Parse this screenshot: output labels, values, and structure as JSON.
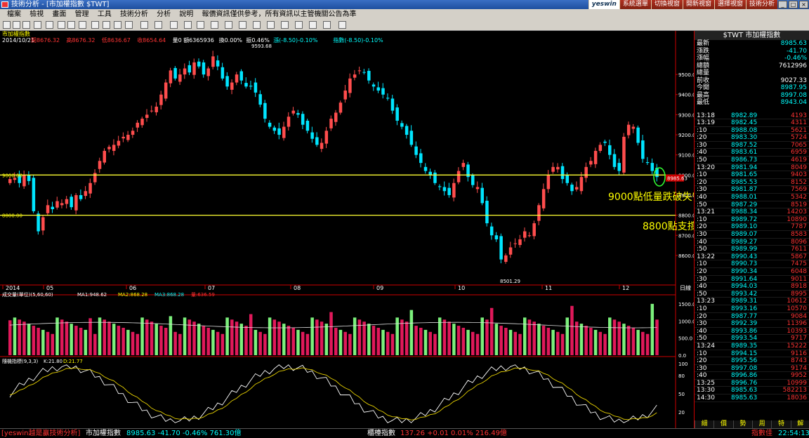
{
  "title": "技術分析 - [市加權指數 $TWT]",
  "menu": [
    "檔案",
    "檢視",
    "畫面",
    "管理",
    "工具",
    "技術分析",
    "分析",
    "說明",
    "報價資訊僅供參考，所有資訊以主管機關公告為準"
  ],
  "top_buttons": [
    "yeswin",
    "系統選單",
    "切換視窗",
    "開新視窗",
    "選擇視窗",
    "技術分析"
  ],
  "chart_header": {
    "name": "市加權指數",
    "date": "2014/10/21",
    "fields": [
      "開8676.32",
      "高8676.32",
      "低8636.67",
      "收8654.64",
      "量0",
      "額6365936",
      "換0.00%",
      "振0.46%",
      "漲(-8.50)-0.10%",
      "指數(-8.50)-0.10%"
    ]
  },
  "price_axis": [
    "9500.00",
    "9400.00",
    "9300.00",
    "9200.00",
    "9100.00",
    "9000.00",
    "8900.00",
    "8800.00",
    "8700.00",
    "8600.00"
  ],
  "x_labels": [
    "2014",
    "05",
    "06",
    "07",
    "08",
    "09",
    "10",
    "11",
    "12"
  ],
  "x_label_day": "日線",
  "levels": {
    "a": "9000.00",
    "b": "8800.00"
  },
  "annotations": {
    "hi": "9593.68",
    "lo": "8501.29",
    "a9000": "9000點低量跌破失守",
    "a8800": "8800點支撐"
  },
  "price_tag": "8985.63",
  "vol": {
    "header": "成交量(單位)(5,60,60)",
    "ma1": "MA1:948.62",
    "ma2": "MA2:868.28",
    "ma3": "MA3:868.28",
    "q": "量:636.59",
    "axis": [
      "1500.0",
      "1000.0",
      "500.0",
      "0.0"
    ]
  },
  "kd": {
    "header": "隨機指標(9,3,3)",
    "k": "K:21.80",
    "d": "D:21.77",
    "axis": [
      "100",
      "80",
      "50",
      "20"
    ]
  },
  "colors": {
    "up": "#ff4d4d",
    "down": "#00e5ff",
    "vup": "#e0195a",
    "vdn": "#7cf07c",
    "level": "#ffff33",
    "k": "#ffffff",
    "d": "#e6d000",
    "anno": "#ffff00"
  },
  "panel": {
    "title": "$TWT 市加權指數",
    "quote": [
      [
        "最新",
        "8985.63"
      ],
      [
        "漲跌",
        "-41.70"
      ],
      [
        "漲幅",
        "-0.46%"
      ],
      [
        "總額",
        "7612996"
      ],
      [
        "總量",
        ""
      ],
      [
        "前收",
        "9027.33"
      ],
      [
        "今開",
        "8987.95"
      ],
      [
        "最高",
        "8997.08"
      ],
      [
        "最低",
        "8943.04"
      ]
    ],
    "ticks": [
      [
        "13:18",
        "8982.89",
        "4193"
      ],
      [
        "13:19",
        "8982.45",
        "4311"
      ],
      [
        ":10",
        "8988.08",
        "5621"
      ],
      [
        ":20",
        "8983.30",
        "5724"
      ],
      [
        ":30",
        "8987.52",
        "7065"
      ],
      [
        ":40",
        "8983.61",
        "6959"
      ],
      [
        ":50",
        "8986.73",
        "4619"
      ],
      [
        "13:20",
        "8981.94",
        "8049"
      ],
      [
        ":10",
        "8981.65",
        "9403"
      ],
      [
        ":20",
        "8985.53",
        "8152"
      ],
      [
        ":30",
        "8981.87",
        "7569"
      ],
      [
        ":40",
        "8988.01",
        "5342"
      ],
      [
        ":50",
        "8987.29",
        "8519"
      ],
      [
        "13:21",
        "8988.34",
        "14203"
      ],
      [
        ":10",
        "8989.72",
        "10890"
      ],
      [
        ":20",
        "8989.10",
        "7787"
      ],
      [
        ":30",
        "8989.07",
        "8583"
      ],
      [
        ":40",
        "8989.27",
        "8096"
      ],
      [
        ":50",
        "8989.99",
        "7611"
      ],
      [
        "13:22",
        "8990.43",
        "5867"
      ],
      [
        ":10",
        "8990.73",
        "7475"
      ],
      [
        ":20",
        "8990.34",
        "6048"
      ],
      [
        ":30",
        "8991.64",
        "9011"
      ],
      [
        ":40",
        "8994.03",
        "8918"
      ],
      [
        ":50",
        "8993.42",
        "8995"
      ],
      [
        "13:23",
        "8989.31",
        "10612"
      ],
      [
        ":10",
        "8993.16",
        "10570"
      ],
      [
        ":20",
        "8987.77",
        "9084"
      ],
      [
        ":30",
        "8992.39",
        "11396"
      ],
      [
        ":40",
        "8993.86",
        "10393"
      ],
      [
        ":50",
        "8993.54",
        "9717"
      ],
      [
        "13:24",
        "8989.35",
        "15222"
      ],
      [
        ":10",
        "8994.15",
        "9116"
      ],
      [
        ":20",
        "8995.56",
        "8743"
      ],
      [
        ":30",
        "8997.08",
        "9174"
      ],
      [
        ":40",
        "8996.86",
        "9952"
      ],
      [
        "13:25",
        "8996.76",
        "10999"
      ],
      [
        "13:30",
        "8985.63",
        "582213"
      ],
      [
        "14:30",
        "8985.63",
        "18036"
      ]
    ],
    "tabs": [
      "細",
      "價",
      "勢",
      "周",
      "特",
      "解"
    ]
  },
  "status": {
    "brand": "[yeswin越是贏技術分析]",
    "idx1": "市加權指數",
    "idx1_val": "8985.63 -41.70 -0.46% 761.30億",
    "idx2": "櫃檯指數",
    "idx2_val": "137.26 +0.01 0.01% 216.49億",
    "right": "指數佳",
    "time": "22:54:13"
  },
  "chart_data": {
    "type": "candlestick",
    "ohlc_daily_sample": "values estimated from screenshot",
    "series": [
      {
        "name": "市加權指數"
      }
    ],
    "closes": [
      8980,
      8985,
      8960,
      9000,
      8970,
      8820,
      8720,
      8790,
      8850,
      8830,
      8870,
      8860,
      8880,
      8840,
      8900,
      8880,
      8920,
      8960,
      9010,
      9070,
      9120,
      9140,
      9150,
      9170,
      9190,
      9200,
      9220,
      9260,
      9280,
      9300,
      9320,
      9340,
      9400,
      9460,
      9520,
      9480,
      9500,
      9530,
      9510,
      9560,
      9540,
      9500,
      9530,
      9590,
      9540,
      9480,
      9440,
      9460,
      9500,
      9470,
      9440,
      9440,
      9410,
      9350,
      9280,
      9240,
      9220,
      9200,
      9240,
      9290,
      9320,
      9300,
      9250,
      9220,
      9180,
      9150,
      9160,
      9220,
      9280,
      9310,
      9360,
      9420,
      9480,
      9500,
      9520,
      9510,
      9470,
      9440,
      9420,
      9400,
      9380,
      9320,
      9270,
      9240,
      9200,
      9150,
      9100,
      9060,
      9020,
      9000,
      8960,
      8940,
      8920,
      8900,
      8960,
      9020,
      9060,
      8990,
      8950,
      8940,
      8860,
      8760,
      8700,
      8680,
      8580,
      8600,
      8640,
      8660,
      8680,
      8720,
      8700,
      8760,
      8850,
      8930,
      9000,
      9040,
      9040,
      8980,
      8960,
      8920,
      8940,
      8990,
      9040,
      9070,
      9120,
      9150,
      9160,
      9100,
      9040,
      9020,
      9190,
      9250,
      9240,
      9160,
      9080,
      9060,
      9020,
      8990
    ],
    "hi": 9593.68,
    "lo": 8501.29,
    "levels": [
      9000,
      8800
    ]
  }
}
